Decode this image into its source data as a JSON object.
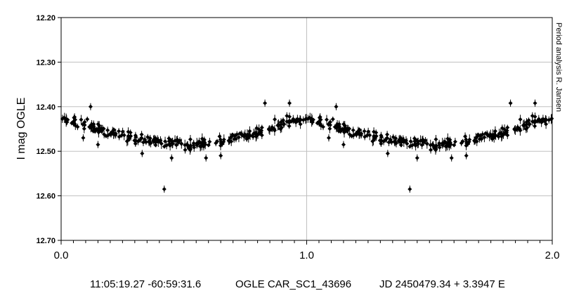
{
  "chart_data": {
    "type": "scatter",
    "title": "",
    "xlabel": "",
    "ylabel": "I mag OGLE",
    "side_note": "Period analysis  R. Jansen",
    "xlim": [
      0.0,
      2.0
    ],
    "ylim": [
      12.7,
      12.2
    ],
    "y_inverted": true,
    "x_major_ticks": [
      "0.0",
      "1.0",
      "2.0"
    ],
    "y_ticks": [
      "12.20",
      "12.30",
      "12.40",
      "12.50",
      "12.60",
      "12.70"
    ],
    "grid": true,
    "phase_profile": [
      [
        0.0,
        12.43
      ],
      [
        0.05,
        12.435
      ],
      [
        0.1,
        12.44
      ],
      [
        0.15,
        12.45
      ],
      [
        0.2,
        12.46
      ],
      [
        0.25,
        12.465
      ],
      [
        0.3,
        12.47
      ],
      [
        0.35,
        12.475
      ],
      [
        0.4,
        12.478
      ],
      [
        0.45,
        12.482
      ],
      [
        0.5,
        12.485
      ],
      [
        0.55,
        12.485
      ],
      [
        0.6,
        12.482
      ],
      [
        0.65,
        12.478
      ],
      [
        0.7,
        12.47
      ],
      [
        0.75,
        12.465
      ],
      [
        0.8,
        12.458
      ],
      [
        0.85,
        12.448
      ],
      [
        0.9,
        12.438
      ],
      [
        0.95,
        12.432
      ],
      [
        1.0,
        12.43
      ]
    ],
    "scatter_half_width": 0.018,
    "points_per_cycle": 260,
    "outliers": [
      [
        0.42,
        12.585
      ],
      [
        0.12,
        12.4
      ],
      [
        0.83,
        12.392
      ],
      [
        0.93,
        12.392
      ],
      [
        0.59,
        12.515
      ],
      [
        0.45,
        12.515
      ],
      [
        0.33,
        12.505
      ],
      [
        0.65,
        12.51
      ],
      [
        0.09,
        12.47
      ],
      [
        0.15,
        12.485
      ]
    ],
    "repeated_phase": true
  },
  "footer": {
    "coords": "11:05:19.27 -60:59:31.6",
    "star": "OGLE CAR_SC1_43696",
    "ephemeris": "JD 2450479.34 + 3.3947 E"
  },
  "colors": {
    "marker": "#000000",
    "grid": "#c0c0c0",
    "axis": "#000000"
  }
}
